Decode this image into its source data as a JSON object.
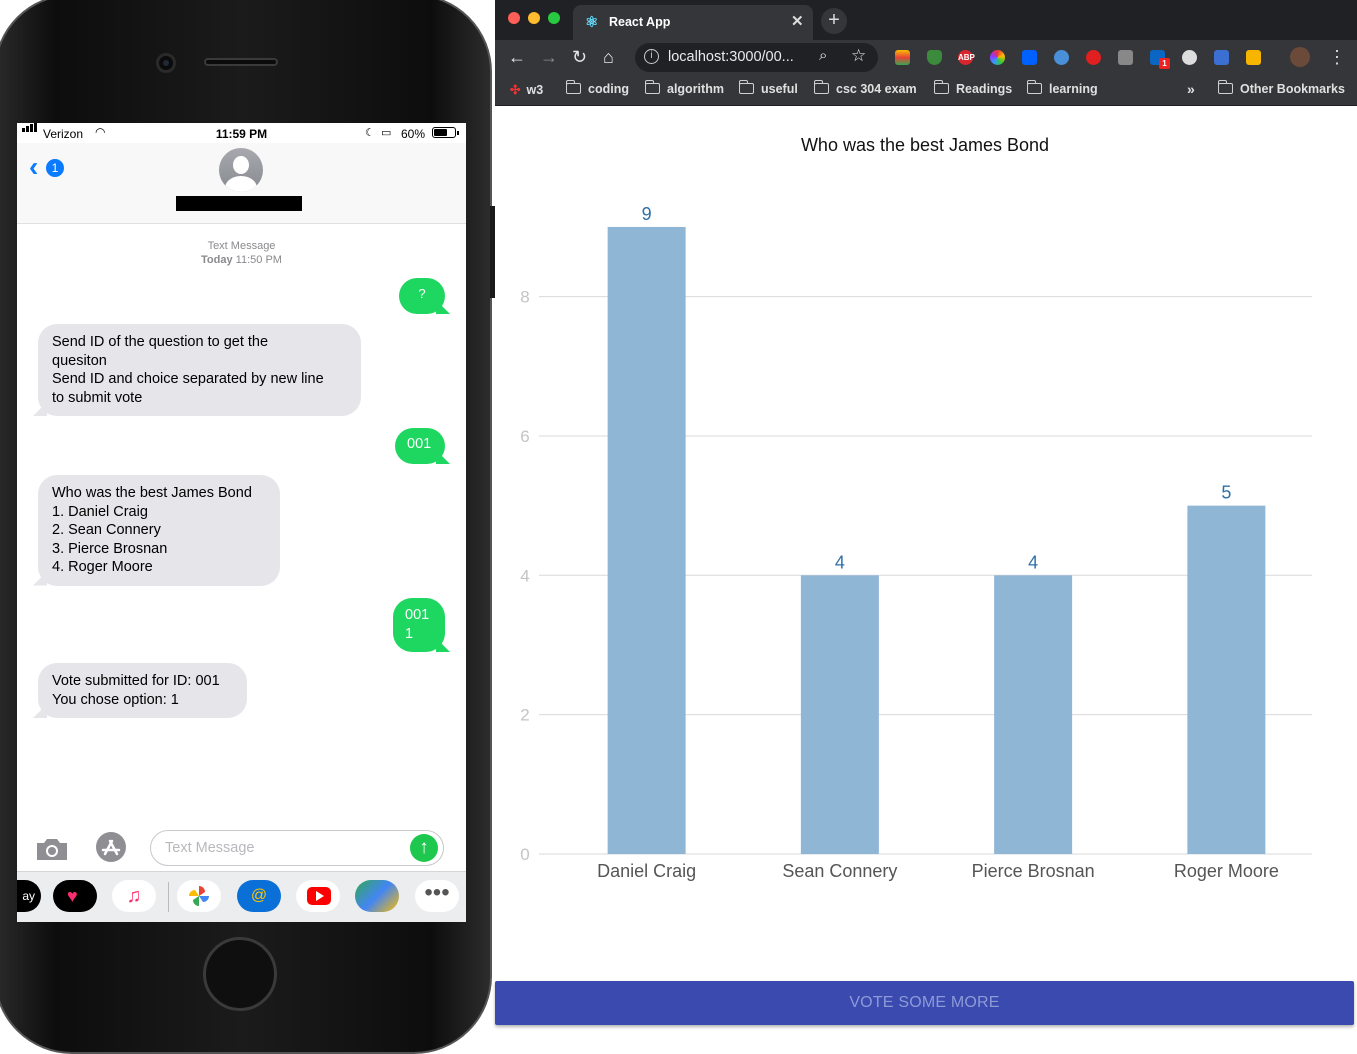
{
  "phone": {
    "status": {
      "carrier": "Verizon",
      "time": "11:59 PM",
      "battery": "60%"
    },
    "header": {
      "back_badge": "1"
    },
    "thread": {
      "service": "Text Message",
      "day": "Today",
      "time": "11:50 PM"
    },
    "messages": [
      {
        "from": "me",
        "text": "?"
      },
      {
        "from": "them",
        "text": "Send ID of the question to get the\nquesiton\nSend ID and choice separated by new line\nto submit vote"
      },
      {
        "from": "me",
        "text": "001"
      },
      {
        "from": "them",
        "text": "Who was the best James Bond\n1. Daniel Craig\n2. Sean Connery\n3. Pierce Brosnan\n4. Roger Moore"
      },
      {
        "from": "me",
        "text": "001\n1"
      },
      {
        "from": "them",
        "text": "Vote submitted for ID: 001\nYou chose option: 1"
      }
    ],
    "compose": {
      "placeholder": "Text Message"
    },
    "apps": {
      "pay_label": "ay"
    }
  },
  "browser": {
    "tab_title": "React App",
    "url": "localhost:3000/00...",
    "bookmarks": [
      "w3",
      "coding",
      "algorithm",
      "useful",
      "csc 304 exam",
      "Readings",
      "learning"
    ],
    "bookmarks_more": "»",
    "other_bookmarks": "Other Bookmarks",
    "extensions": {
      "abp": "ABP",
      "linkedin_badge": "1"
    }
  },
  "chart_data": {
    "type": "bar",
    "title": "Who was the best James Bond",
    "categories": [
      "Daniel Craig",
      "Sean Connery",
      "Pierce Brosnan",
      "Roger Moore"
    ],
    "values": [
      9,
      4,
      4,
      5
    ],
    "ylim": [
      0,
      9.2
    ],
    "yticks": [
      0,
      2,
      4,
      6,
      8
    ],
    "grid": true,
    "colors": {
      "bar": "#90b6d6",
      "label": "#2f6fa8",
      "grid": "#d9d9d9"
    }
  },
  "action": {
    "vote_more": "VOTE SOME MORE"
  }
}
